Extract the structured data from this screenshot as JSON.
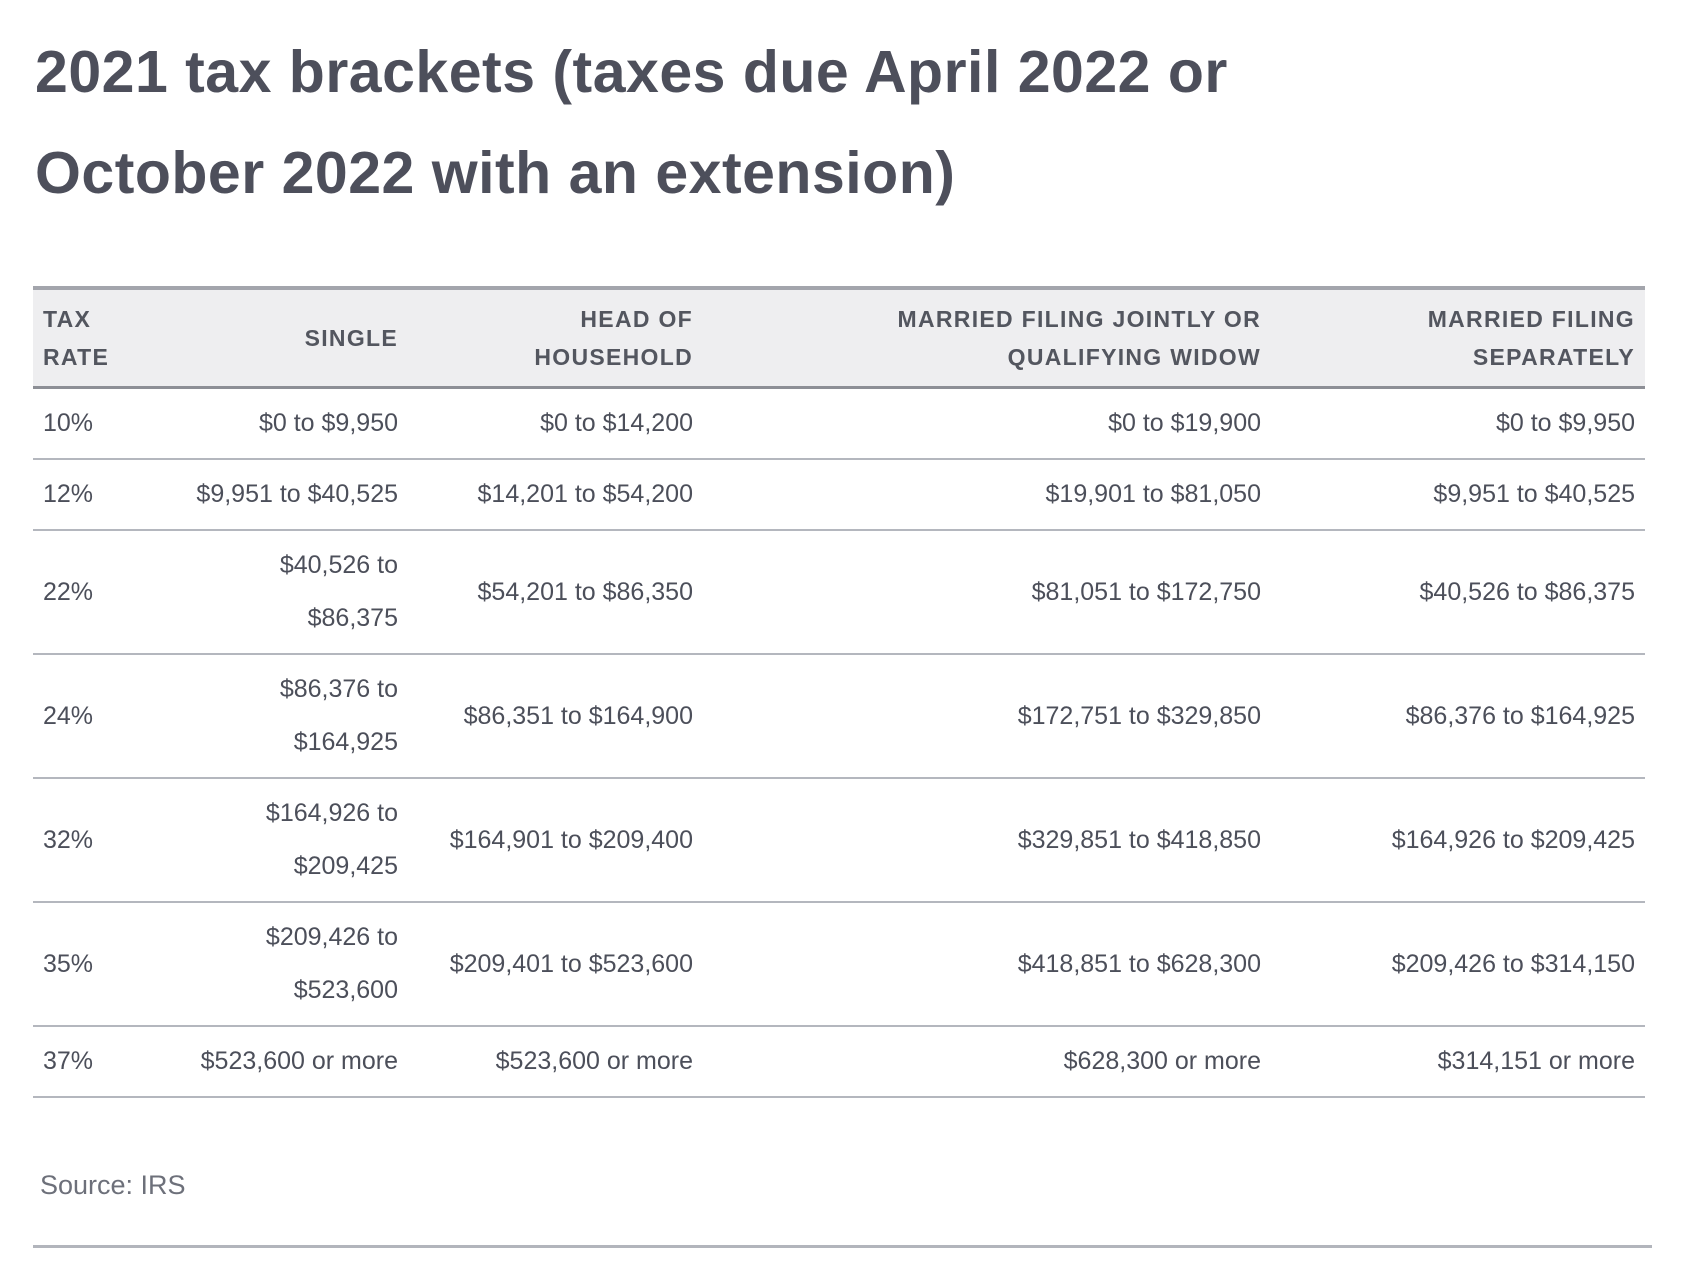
{
  "page": {
    "title": "2021 tax brackets (taxes due April 2022 or\nOctober 2022 with an extension)",
    "source": "Source: IRS"
  },
  "colors": {
    "title_text": "#4d4f5b",
    "header_bg": "#eeeef0",
    "header_text": "#53565f",
    "body_text": "#4c4f5a",
    "row_divider": "#b4b7be",
    "header_top_border": "#a3a5ac",
    "header_bottom_border": "#8d8f96",
    "source_text": "#6d707a",
    "background": "#ffffff"
  },
  "table": {
    "headers": {
      "rate": "TAX\nRATE",
      "single": "SINGLE",
      "hoh": "HEAD OF\nHOUSEHOLD",
      "mfj": "MARRIED FILING JOINTLY OR\nQUALIFYING WIDOW",
      "mfs": "MARRIED FILING\nSEPARATELY"
    },
    "rows": [
      {
        "rate": "10%",
        "single": "$0 to $9,950",
        "hoh": "$0 to $14,200",
        "mfj": "$0 to $19,900",
        "mfs": "$0 to $9,950"
      },
      {
        "rate": "12%",
        "single": "$9,951 to $40,525",
        "hoh": "$14,201 to $54,200",
        "mfj": "$19,901 to $81,050",
        "mfs": "$9,951 to $40,525"
      },
      {
        "rate": "22%",
        "single": "$40,526 to\n$86,375",
        "hoh": "$54,201 to $86,350",
        "mfj": "$81,051 to $172,750",
        "mfs": "$40,526 to $86,375"
      },
      {
        "rate": "24%",
        "single": "$86,376 to\n$164,925",
        "hoh": "$86,351 to $164,900",
        "mfj": "$172,751 to $329,850",
        "mfs": "$86,376 to $164,925"
      },
      {
        "rate": "32%",
        "single": "$164,926 to\n$209,425",
        "hoh": "$164,901 to $209,400",
        "mfj": "$329,851 to $418,850",
        "mfs": "$164,926 to $209,425"
      },
      {
        "rate": "35%",
        "single": "$209,426 to\n$523,600",
        "hoh": "$209,401 to $523,600",
        "mfj": "$418,851 to $628,300",
        "mfs": "$209,426 to $314,150"
      },
      {
        "rate": "37%",
        "single": "$523,600 or more",
        "hoh": "$523,600 or more",
        "mfj": "$628,300 or more",
        "mfs": "$314,151 or more"
      }
    ]
  },
  "chart_data": {
    "type": "table",
    "title": "2021 tax brackets (taxes due April 2022 or October 2022 with an extension)",
    "source": "IRS",
    "columns": [
      "Tax rate",
      "Single",
      "Head of household",
      "Married filing jointly or qualifying widow",
      "Married filing separately"
    ],
    "rows": [
      [
        "10%",
        "$0 to $9,950",
        "$0 to $14,200",
        "$0 to $19,900",
        "$0 to $9,950"
      ],
      [
        "12%",
        "$9,951 to $40,525",
        "$14,201 to $54,200",
        "$19,901 to $81,050",
        "$9,951 to $40,525"
      ],
      [
        "22%",
        "$40,526 to $86,375",
        "$54,201 to $86,350",
        "$81,051 to $172,750",
        "$40,526 to $86,375"
      ],
      [
        "24%",
        "$86,376 to $164,925",
        "$86,351 to $164,900",
        "$172,751 to $329,850",
        "$86,376 to $164,925"
      ],
      [
        "32%",
        "$164,926 to $209,425",
        "$164,901 to $209,400",
        "$329,851 to $418,850",
        "$164,926 to $209,425"
      ],
      [
        "35%",
        "$209,426 to $523,600",
        "$209,401 to $523,600",
        "$418,851 to $628,300",
        "$209,426 to $314,150"
      ],
      [
        "37%",
        "$523,600 or more",
        "$523,600 or more",
        "$628,300 or more",
        "$314,151 or more"
      ]
    ]
  }
}
